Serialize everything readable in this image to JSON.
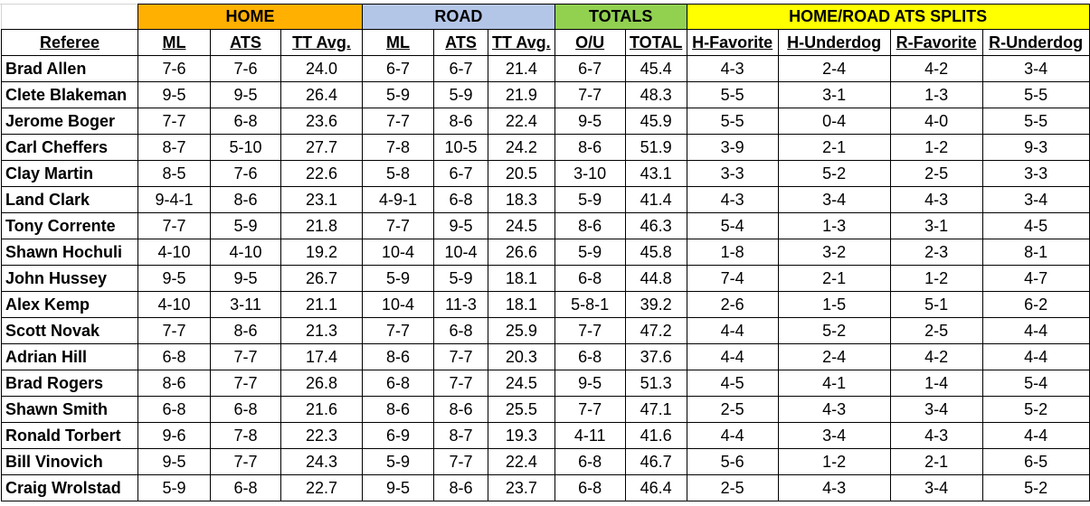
{
  "groups": {
    "home": {
      "label": "HOME",
      "color": "#FFB000"
    },
    "road": {
      "label": "ROAD",
      "color": "#B4C6E7"
    },
    "totals": {
      "label": "TOTALS",
      "color": "#92D050"
    },
    "splits": {
      "label": "HOME/ROAD ATS SPLITS",
      "color": "#FFFF00"
    }
  },
  "headers": [
    "Referee",
    "ML",
    "ATS",
    "TT Avg.",
    "ML",
    "ATS",
    "TT Avg.",
    "O/U",
    "TOTAL",
    "H-Favorite",
    "H-Underdog",
    "R-Favorite",
    "R-Underdog"
  ],
  "rows": [
    [
      "Brad Allen",
      "7-6",
      "7-6",
      "24.0",
      "6-7",
      "6-7",
      "21.4",
      "6-7",
      "45.4",
      "4-3",
      "2-4",
      "4-2",
      "3-4"
    ],
    [
      "Clete Blakeman",
      "9-5",
      "9-5",
      "26.4",
      "5-9",
      "5-9",
      "21.9",
      "7-7",
      "48.3",
      "5-5",
      "3-1",
      "1-3",
      "5-5"
    ],
    [
      "Jerome Boger",
      "7-7",
      "6-8",
      "23.6",
      "7-7",
      "8-6",
      "22.4",
      "9-5",
      "45.9",
      "5-5",
      "0-4",
      "4-0",
      "5-5"
    ],
    [
      "Carl Cheffers",
      "8-7",
      "5-10",
      "27.7",
      "7-8",
      "10-5",
      "24.2",
      "8-6",
      "51.9",
      "3-9",
      "2-1",
      "1-2",
      "9-3"
    ],
    [
      "Clay Martin",
      "8-5",
      "7-6",
      "22.6",
      "5-8",
      "6-7",
      "20.5",
      "3-10",
      "43.1",
      "3-3",
      "5-2",
      "2-5",
      "3-3"
    ],
    [
      "Land Clark",
      "9-4-1",
      "8-6",
      "23.1",
      "4-9-1",
      "6-8",
      "18.3",
      "5-9",
      "41.4",
      "4-3",
      "3-4",
      "4-3",
      "3-4"
    ],
    [
      "Tony Corrente",
      "7-7",
      "5-9",
      "21.8",
      "7-7",
      "9-5",
      "24.5",
      "8-6",
      "46.3",
      "5-4",
      "1-3",
      "3-1",
      "4-5"
    ],
    [
      "Shawn Hochuli",
      "4-10",
      "4-10",
      "19.2",
      "10-4",
      "10-4",
      "26.6",
      "5-9",
      "45.8",
      "1-8",
      "3-2",
      "2-3",
      "8-1"
    ],
    [
      "John Hussey",
      "9-5",
      "9-5",
      "26.7",
      "5-9",
      "5-9",
      "18.1",
      "6-8",
      "44.8",
      "7-4",
      "2-1",
      "1-2",
      "4-7"
    ],
    [
      "Alex Kemp",
      "4-10",
      "3-11",
      "21.1",
      "10-4",
      "11-3",
      "18.1",
      "5-8-1",
      "39.2",
      "2-6",
      "1-5",
      "5-1",
      "6-2"
    ],
    [
      "Scott Novak",
      "7-7",
      "8-6",
      "21.3",
      "7-7",
      "6-8",
      "25.9",
      "7-7",
      "47.2",
      "4-4",
      "5-2",
      "2-5",
      "4-4"
    ],
    [
      "Adrian Hill",
      "6-8",
      "7-7",
      "17.4",
      "8-6",
      "7-7",
      "20.3",
      "6-8",
      "37.6",
      "4-4",
      "2-4",
      "4-2",
      "4-4"
    ],
    [
      "Brad Rogers",
      "8-6",
      "7-7",
      "26.8",
      "6-8",
      "7-7",
      "24.5",
      "9-5",
      "51.3",
      "4-5",
      "4-1",
      "1-4",
      "5-4"
    ],
    [
      "Shawn Smith",
      "6-8",
      "6-8",
      "21.6",
      "8-6",
      "8-6",
      "25.5",
      "7-7",
      "47.1",
      "2-5",
      "4-3",
      "3-4",
      "5-2"
    ],
    [
      "Ronald Torbert",
      "9-6",
      "7-8",
      "22.3",
      "6-9",
      "8-7",
      "19.3",
      "4-11",
      "41.6",
      "4-4",
      "3-4",
      "4-3",
      "4-4"
    ],
    [
      "Bill Vinovich",
      "9-5",
      "7-7",
      "24.3",
      "5-9",
      "7-7",
      "22.4",
      "6-8",
      "46.7",
      "5-6",
      "1-2",
      "2-1",
      "6-5"
    ],
    [
      "Craig Wrolstad",
      "5-9",
      "6-8",
      "22.7",
      "9-5",
      "8-6",
      "23.7",
      "6-8",
      "46.4",
      "2-5",
      "4-3",
      "3-4",
      "5-2"
    ]
  ]
}
